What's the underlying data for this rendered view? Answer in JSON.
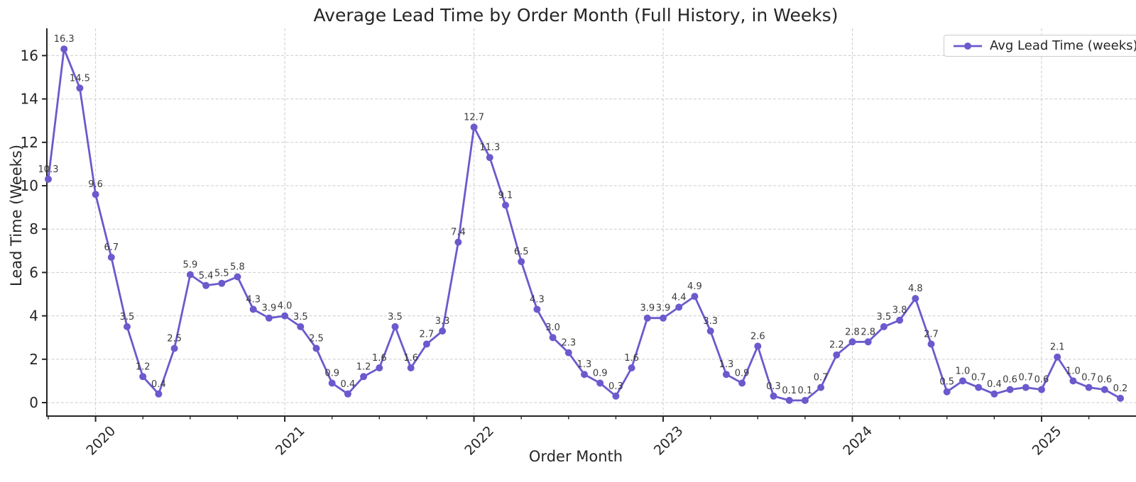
{
  "chart_data": {
    "type": "line",
    "title": "Average Lead Time by Order Month (Full History, in Weeks)",
    "xlabel": "Order Month",
    "ylabel": "Lead Time (Weeks)",
    "legend": {
      "label": "Avg Lead Time (weeks)",
      "position": "upper right"
    },
    "grid": true,
    "x_tick_years": [
      2020,
      2021,
      2022,
      2023,
      2024,
      2025
    ],
    "x_minor_tick_frequency": "quarterly",
    "y_ticks": [
      0,
      2,
      4,
      6,
      8,
      10,
      12,
      14,
      16
    ],
    "ylim": [
      -0.7,
      17.3
    ],
    "point_label_decimals": 1,
    "series": [
      {
        "name": "Avg Lead Time (weeks)",
        "start_month": "2019-10",
        "end_month": "2025-06",
        "frequency": "monthly",
        "values": [
          10.3,
          16.3,
          14.5,
          9.6,
          6.7,
          3.5,
          1.2,
          0.4,
          2.5,
          5.9,
          5.4,
          5.5,
          5.8,
          4.3,
          3.9,
          4.0,
          3.5,
          2.5,
          0.9,
          0.4,
          1.2,
          1.6,
          3.5,
          1.6,
          2.7,
          3.3,
          7.4,
          12.7,
          11.3,
          9.1,
          6.5,
          4.3,
          3.0,
          2.3,
          1.3,
          0.9,
          0.3,
          1.6,
          3.9,
          3.9,
          4.4,
          4.9,
          3.3,
          1.3,
          0.9,
          2.6,
          0.3,
          0.1,
          0.1,
          0.7,
          2.2,
          2.8,
          2.8,
          3.5,
          3.8,
          4.8,
          2.7,
          0.5,
          1.0,
          0.7,
          0.4,
          0.6,
          0.7,
          0.6,
          2.1,
          1.0,
          0.7,
          0.6,
          0.2
        ]
      }
    ],
    "colors": {
      "line": "#6a5acd",
      "marker": "#6a5acd",
      "grid": "#cccccc",
      "axis": "#262626",
      "tick_label": "#262626",
      "point_label": "#3a3a3a",
      "background": "#ffffff",
      "legend_border": "#cccccc"
    }
  }
}
